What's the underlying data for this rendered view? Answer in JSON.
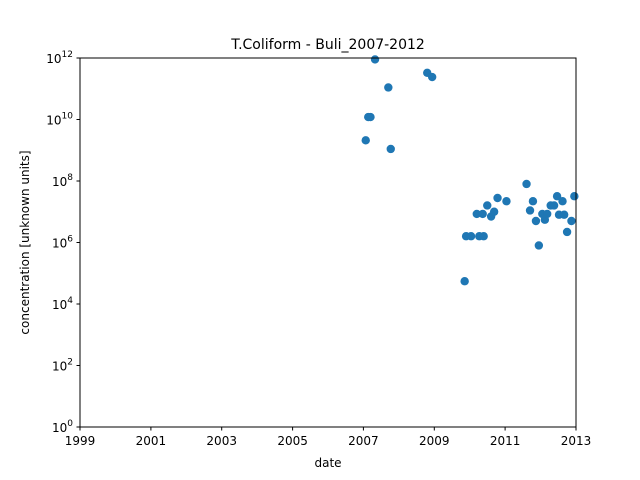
{
  "chart_data": {
    "type": "scatter",
    "title": "T.Coliform - Buli_2007-2012",
    "xlabel": "date",
    "ylabel": "concentration [unknown units]",
    "x_scale": "date",
    "y_scale": "log",
    "xlim": [
      "1999-01-01",
      "2013-01-01"
    ],
    "ylim": [
      1,
      1000000000000.0
    ],
    "x_ticks": [
      "1999",
      "2001",
      "2003",
      "2005",
      "2007",
      "2009",
      "2011",
      "2013"
    ],
    "y_ticks": [
      {
        "value": 1,
        "base": "10",
        "exp": "0"
      },
      {
        "value": 100,
        "base": "10",
        "exp": "2"
      },
      {
        "value": 10000,
        "base": "10",
        "exp": "4"
      },
      {
        "value": 1000000,
        "base": "10",
        "exp": "6"
      },
      {
        "value": 100000000,
        "base": "10",
        "exp": "8"
      },
      {
        "value": 10000000000,
        "base": "10",
        "exp": "10"
      },
      {
        "value": 1000000000000,
        "base": "10",
        "exp": "12"
      }
    ],
    "grid": false,
    "legend": "none",
    "marker_color": "#1f77b4",
    "points": [
      {
        "x": "2007-01-25",
        "y": 2100000000.0
      },
      {
        "x": "2007-02-20",
        "y": 12000000000.0
      },
      {
        "x": "2007-03-15",
        "y": 12000000000.0
      },
      {
        "x": "2007-05-01",
        "y": 900000000000.0
      },
      {
        "x": "2007-09-15",
        "y": 110000000000.0
      },
      {
        "x": "2007-10-10",
        "y": 1100000000.0
      },
      {
        "x": "2008-10-20",
        "y": 330000000000.0
      },
      {
        "x": "2008-12-10",
        "y": 240000000000.0
      },
      {
        "x": "2009-11-10",
        "y": 55000.0
      },
      {
        "x": "2009-11-25",
        "y": 1600000.0
      },
      {
        "x": "2010-01-15",
        "y": 1600000.0
      },
      {
        "x": "2010-03-15",
        "y": 8500000.0
      },
      {
        "x": "2010-04-10",
        "y": 1600000.0
      },
      {
        "x": "2010-05-15",
        "y": 8500000.0
      },
      {
        "x": "2010-05-25",
        "y": 1600000.0
      },
      {
        "x": "2010-07-01",
        "y": 16000000.0
      },
      {
        "x": "2010-08-10",
        "y": 7000000.0
      },
      {
        "x": "2010-09-10",
        "y": 10000000.0
      },
      {
        "x": "2010-10-15",
        "y": 28000000.0
      },
      {
        "x": "2011-01-15",
        "y": 22000000.0
      },
      {
        "x": "2011-08-10",
        "y": 80000000.0
      },
      {
        "x": "2011-09-15",
        "y": 11000000.0
      },
      {
        "x": "2011-10-15",
        "y": 22000000.0
      },
      {
        "x": "2011-11-15",
        "y": 5000000.0
      },
      {
        "x": "2011-12-15",
        "y": 800000.0
      },
      {
        "x": "2012-01-20",
        "y": 8500000.0
      },
      {
        "x": "2012-02-15",
        "y": 5500000.0
      },
      {
        "x": "2012-03-10",
        "y": 8500000.0
      },
      {
        "x": "2012-04-15",
        "y": 16000000.0
      },
      {
        "x": "2012-05-20",
        "y": 16000000.0
      },
      {
        "x": "2012-06-20",
        "y": 32000000.0
      },
      {
        "x": "2012-07-10",
        "y": 8000000.0
      },
      {
        "x": "2012-08-15",
        "y": 22000000.0
      },
      {
        "x": "2012-09-01",
        "y": 8000000.0
      },
      {
        "x": "2012-10-01",
        "y": 2200000.0
      },
      {
        "x": "2012-11-15",
        "y": 5000000.0
      },
      {
        "x": "2012-12-15",
        "y": 32000000.0
      }
    ]
  }
}
